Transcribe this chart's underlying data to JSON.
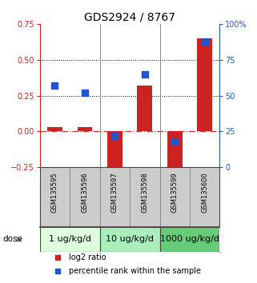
{
  "title": "GDS2924 / 8767",
  "samples": [
    "GSM135595",
    "GSM135596",
    "GSM135597",
    "GSM135598",
    "GSM135599",
    "GSM135600"
  ],
  "log2_ratio": [
    0.03,
    0.03,
    -0.29,
    0.32,
    -0.28,
    0.65
  ],
  "percentile_rank": [
    57,
    52,
    22,
    65,
    18,
    88
  ],
  "bar_color": "#cc2222",
  "dot_color": "#2255cc",
  "left_ylim": [
    -0.25,
    0.75
  ],
  "right_ylim": [
    0,
    100
  ],
  "left_yticks": [
    -0.25,
    0.0,
    0.25,
    0.5,
    0.75
  ],
  "right_yticks": [
    0,
    25,
    50,
    75,
    100
  ],
  "right_yticklabels": [
    "0",
    "25",
    "50",
    "75",
    "100%"
  ],
  "hlines": [
    0.5,
    0.25
  ],
  "zero_line": 0.0,
  "dose_groups": [
    {
      "label": "1 ug/kg/d",
      "indices": [
        0,
        1
      ],
      "color": "#ddffdd"
    },
    {
      "label": "10 ug/kg/d",
      "indices": [
        2,
        3
      ],
      "color": "#aaeebb"
    },
    {
      "label": "1000 ug/kg/d",
      "indices": [
        4,
        5
      ],
      "color": "#66cc77"
    }
  ],
  "dose_label": "dose",
  "legend_items": [
    {
      "label": "log2 ratio",
      "color": "#cc2222"
    },
    {
      "label": "percentile rank within the sample",
      "color": "#2255cc"
    }
  ],
  "left_ylabel_color": "#cc2222",
  "right_ylabel_color": "#2255cc",
  "bar_width": 0.5,
  "dot_size": 30,
  "bg_plot": "#ffffff",
  "bg_sample": "#cccccc",
  "title_fontsize": 10,
  "tick_fontsize": 7,
  "sample_fontsize": 6,
  "dose_fontsize": 8,
  "legend_fontsize": 7
}
